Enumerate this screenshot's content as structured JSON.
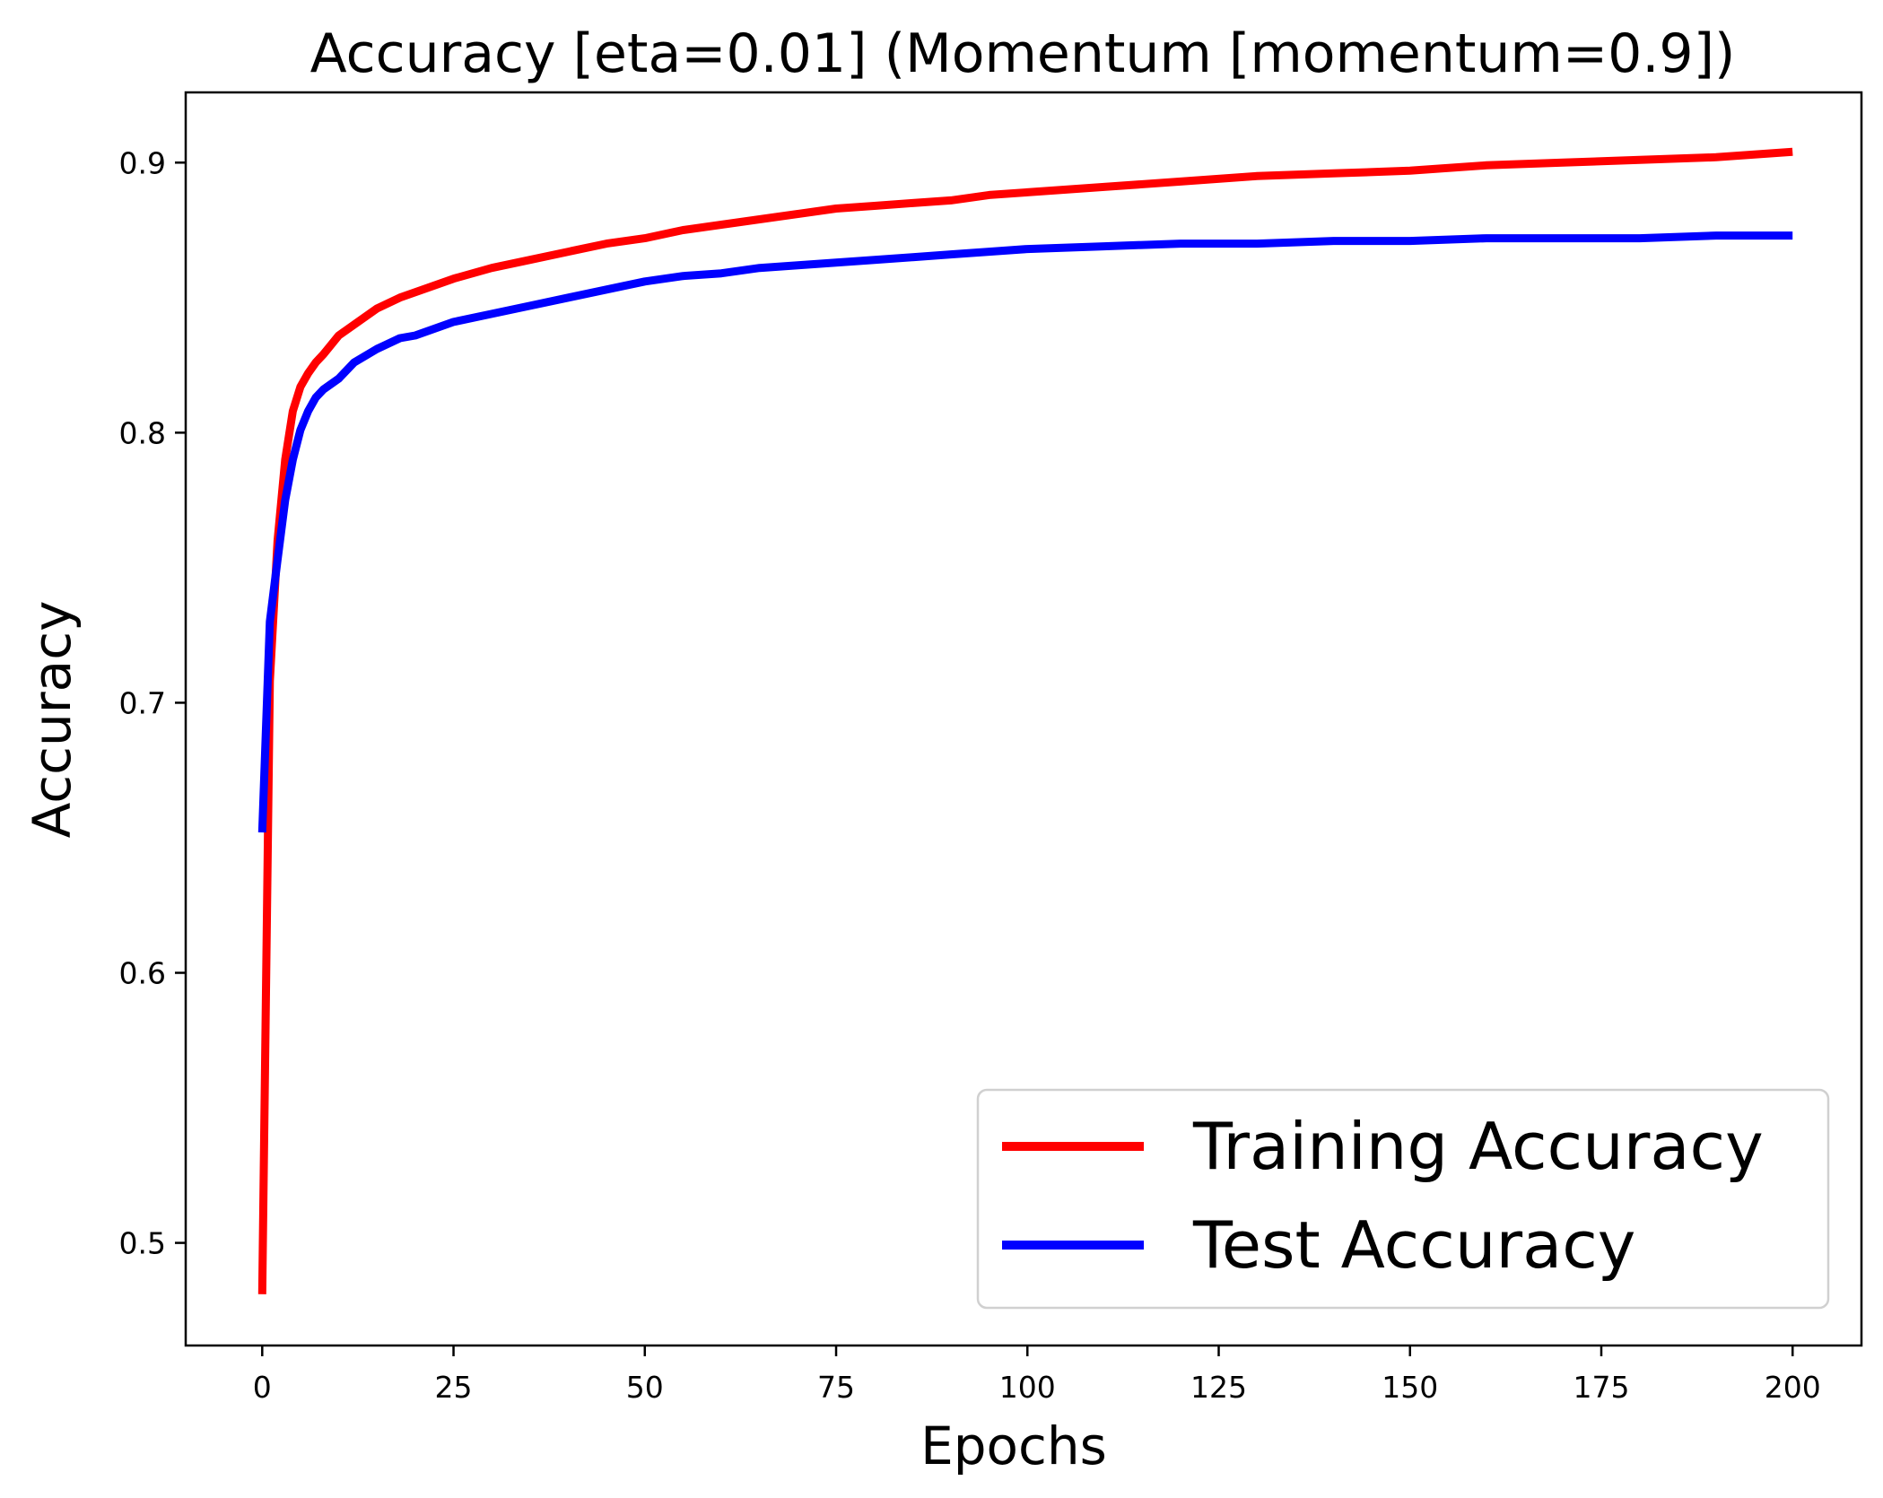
{
  "chart_data": {
    "type": "line",
    "title": "Accuracy [eta=0.01] (Momentum [momentum=0.9])",
    "xlabel": "Epochs",
    "ylabel": "Accuracy",
    "xlim": [
      -10,
      209
    ],
    "ylim": [
      0.462,
      0.926
    ],
    "xticks": [
      0,
      25,
      50,
      75,
      100,
      125,
      150,
      175,
      200
    ],
    "yticks": [
      0.5,
      0.6,
      0.7,
      0.8,
      0.9
    ],
    "grid": false,
    "legend_position": "lower-right",
    "x": [
      0,
      1,
      2,
      3,
      4,
      5,
      6,
      7,
      8,
      10,
      12,
      15,
      18,
      20,
      25,
      30,
      35,
      40,
      45,
      50,
      55,
      60,
      65,
      70,
      75,
      80,
      85,
      90,
      95,
      100,
      110,
      120,
      130,
      140,
      150,
      160,
      170,
      180,
      190,
      200
    ],
    "series": [
      {
        "name": "Training Accuracy",
        "color": "#ff0000",
        "values": [
          0.481,
          0.708,
          0.76,
          0.79,
          0.808,
          0.817,
          0.822,
          0.826,
          0.829,
          0.836,
          0.84,
          0.846,
          0.85,
          0.852,
          0.857,
          0.861,
          0.864,
          0.867,
          0.87,
          0.872,
          0.875,
          0.877,
          0.879,
          0.881,
          0.883,
          0.884,
          0.885,
          0.886,
          0.888,
          0.889,
          0.891,
          0.893,
          0.895,
          0.896,
          0.897,
          0.899,
          0.9,
          0.901,
          0.902,
          0.904
        ]
      },
      {
        "name": "Test Accuracy",
        "color": "#0000ff",
        "values": [
          0.652,
          0.73,
          0.753,
          0.775,
          0.79,
          0.801,
          0.808,
          0.813,
          0.816,
          0.82,
          0.826,
          0.831,
          0.835,
          0.836,
          0.841,
          0.844,
          0.847,
          0.85,
          0.853,
          0.856,
          0.858,
          0.859,
          0.861,
          0.862,
          0.863,
          0.864,
          0.865,
          0.866,
          0.867,
          0.868,
          0.869,
          0.87,
          0.87,
          0.871,
          0.871,
          0.872,
          0.872,
          0.872,
          0.873,
          0.873
        ]
      }
    ]
  }
}
